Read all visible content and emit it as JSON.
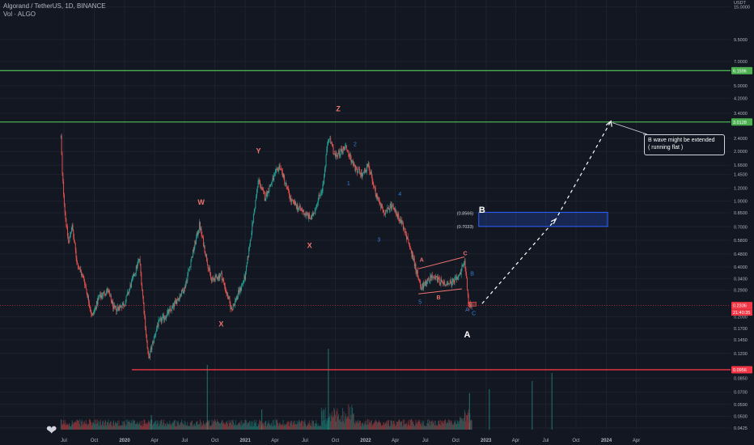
{
  "header": {
    "title": "Algorand / TetherUS, 1D, BINANCE",
    "volume_label": "Vol · ALGO"
  },
  "callout": {
    "line1": "B wave might be extended",
    "line2": "( running flat )"
  },
  "colors": {
    "background": "#131722",
    "up": "#26a69a",
    "down": "#ef5350",
    "resistance": "#4caf50",
    "support": "#f23645",
    "wave_main": "#f0746e",
    "wave_sub": "#2f7fd8",
    "box": "#2962ff",
    "price_tag": "#f23645"
  },
  "chart_data": {
    "type": "candlestick",
    "symbol": "ALGO/USDT",
    "timeframe": "1D",
    "exchange": "BINANCE",
    "y_scale": "log",
    "currency": "USDT",
    "ylim": [
      0.0425,
      15.0
    ],
    "y_ticks": [
      "15.0000",
      "9.5000",
      "7.0000",
      "5.0000",
      "4.2000",
      "3.4000",
      "2.4000",
      "2.0000",
      "1.6500",
      "1.4500",
      "1.2000",
      "1.0000",
      "0.8500",
      "0.7000",
      "0.5800",
      "0.4800",
      "0.4000",
      "0.3400",
      "0.2900",
      "0.2000",
      "0.1700",
      "0.1450",
      "0.1200",
      "0.0850",
      "0.0700",
      "0.0590",
      "0.0500",
      "0.0425"
    ],
    "x_ticks": [
      "Jul",
      "Oct",
      "2020",
      "Apr",
      "Jul",
      "Oct",
      "2021",
      "Apr",
      "Jul",
      "Oct",
      "2022",
      "Apr",
      "Jul",
      "Oct",
      "2023",
      "Apr",
      "Jul",
      "Oct",
      "2024",
      "Apr"
    ],
    "price_labels": {
      "top_line": "6.1596",
      "upper_line": "3.0128",
      "current_price": "0.2336",
      "countdown": "21:40:35",
      "support_line": "0.0956",
      "box_top": "(0.8566)",
      "box_bottom": "(0.7033)"
    },
    "horizontal_lines": [
      {
        "price": 6.1596,
        "color": "green"
      },
      {
        "price": 3.0128,
        "color": "green"
      },
      {
        "price": 0.0956,
        "color": "red"
      }
    ],
    "target_box": {
      "top": 0.8566,
      "bottom": 0.7033
    },
    "wave_labels_main": [
      "W",
      "X",
      "Y",
      "X",
      "Z",
      "A",
      "B",
      "C",
      "B",
      "A"
    ],
    "wave_labels_sub": [
      "1",
      "2",
      "3",
      "4",
      "5",
      "B",
      "A",
      "C"
    ],
    "price_path": [
      {
        "date": "2019-06-22",
        "price": 2.45
      },
      {
        "date": "2019-06-26",
        "price": 1.45
      },
      {
        "date": "2019-07-05",
        "price": 0.82
      },
      {
        "date": "2019-07-15",
        "price": 0.55
      },
      {
        "date": "2019-07-25",
        "price": 0.72
      },
      {
        "date": "2019-08-10",
        "price": 0.42
      },
      {
        "date": "2019-09-01",
        "price": 0.33
      },
      {
        "date": "2019-09-24",
        "price": 0.2
      },
      {
        "date": "2019-10-15",
        "price": 0.26
      },
      {
        "date": "2019-11-10",
        "price": 0.29
      },
      {
        "date": "2019-12-01",
        "price": 0.22
      },
      {
        "date": "2020-01-01",
        "price": 0.24
      },
      {
        "date": "2020-02-15",
        "price": 0.45
      },
      {
        "date": "2020-03-13",
        "price": 0.11
      },
      {
        "date": "2020-04-10",
        "price": 0.18
      },
      {
        "date": "2020-05-20",
        "price": 0.22
      },
      {
        "date": "2020-07-01",
        "price": 0.3
      },
      {
        "date": "2020-08-15",
        "price": 0.72
      },
      {
        "date": "2020-09-20",
        "price": 0.33
      },
      {
        "date": "2020-10-20",
        "price": 0.36
      },
      {
        "date": "2020-11-20",
        "price": 0.22
      },
      {
        "date": "2021-01-01",
        "price": 0.35
      },
      {
        "date": "2021-02-10",
        "price": 1.35
      },
      {
        "date": "2021-03-01",
        "price": 1.05
      },
      {
        "date": "2021-04-15",
        "price": 1.65
      },
      {
        "date": "2021-05-20",
        "price": 1.0
      },
      {
        "date": "2021-07-20",
        "price": 0.78
      },
      {
        "date": "2021-08-25",
        "price": 1.25
      },
      {
        "date": "2021-09-10",
        "price": 2.45
      },
      {
        "date": "2021-10-01",
        "price": 1.85
      },
      {
        "date": "2021-11-01",
        "price": 2.15
      },
      {
        "date": "2021-12-01",
        "price": 1.55
      },
      {
        "date": "2021-12-20",
        "price": 1.45
      },
      {
        "date": "2022-01-10",
        "price": 1.65
      },
      {
        "date": "2022-02-05",
        "price": 1.05
      },
      {
        "date": "2022-03-01",
        "price": 0.85
      },
      {
        "date": "2022-03-25",
        "price": 0.95
      },
      {
        "date": "2022-05-01",
        "price": 0.65
      },
      {
        "date": "2022-06-01",
        "price": 0.4
      },
      {
        "date": "2022-06-18",
        "price": 0.3
      },
      {
        "date": "2022-07-20",
        "price": 0.35
      },
      {
        "date": "2022-09-01",
        "price": 0.31
      },
      {
        "date": "2022-10-10",
        "price": 0.34
      },
      {
        "date": "2022-10-28",
        "price": 0.45
      },
      {
        "date": "2022-11-09",
        "price": 0.24
      },
      {
        "date": "2022-11-20",
        "price": 0.23
      }
    ],
    "projection": [
      {
        "date": "2022-12-20",
        "price": 0.24
      },
      {
        "date": "2023-08-01",
        "price": 0.78
      },
      {
        "date": "2024-01-15",
        "price": 3.05
      }
    ]
  }
}
